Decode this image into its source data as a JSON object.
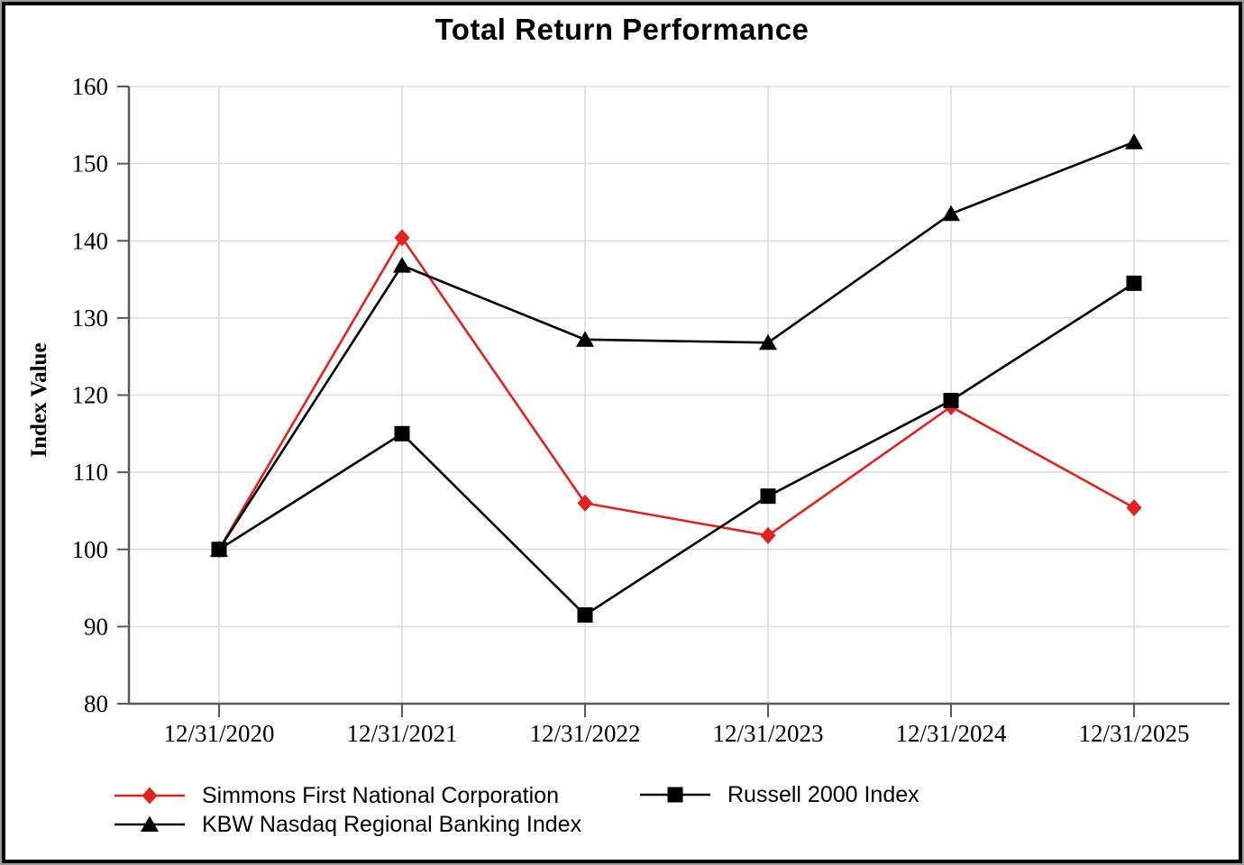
{
  "title": "Total Return Performance",
  "chart_data": {
    "type": "line",
    "title": "Total Return Performance",
    "xlabel": "",
    "ylabel": "Index Value",
    "ylim": [
      80,
      160
    ],
    "yticks": [
      80,
      90,
      100,
      110,
      120,
      130,
      140,
      150,
      160
    ],
    "grid": true,
    "legend_position": "bottom-left",
    "categories": [
      "12/31/2020",
      "12/31/2021",
      "12/31/2022",
      "12/31/2023",
      "12/31/2024",
      "12/31/2025"
    ],
    "series": [
      {
        "name": "Simmons First National Corporation",
        "marker": "diamond",
        "color": "#e0231e",
        "values": [
          100.0,
          140.4,
          106.0,
          101.8,
          118.5,
          105.4
        ]
      },
      {
        "name": "KBW Nasdaq Regional Banking Index",
        "marker": "triangle",
        "color": "#000000",
        "values": [
          100.0,
          136.8,
          127.2,
          126.8,
          143.5,
          152.8
        ]
      },
      {
        "name": "Russell 2000 Index",
        "marker": "square",
        "color": "#000000",
        "values": [
          100.0,
          115.0,
          91.5,
          106.9,
          119.3,
          134.5
        ]
      }
    ]
  },
  "colors": {
    "axis": "#595959",
    "gridline": "#dcdcdc",
    "frame": "#000000"
  }
}
